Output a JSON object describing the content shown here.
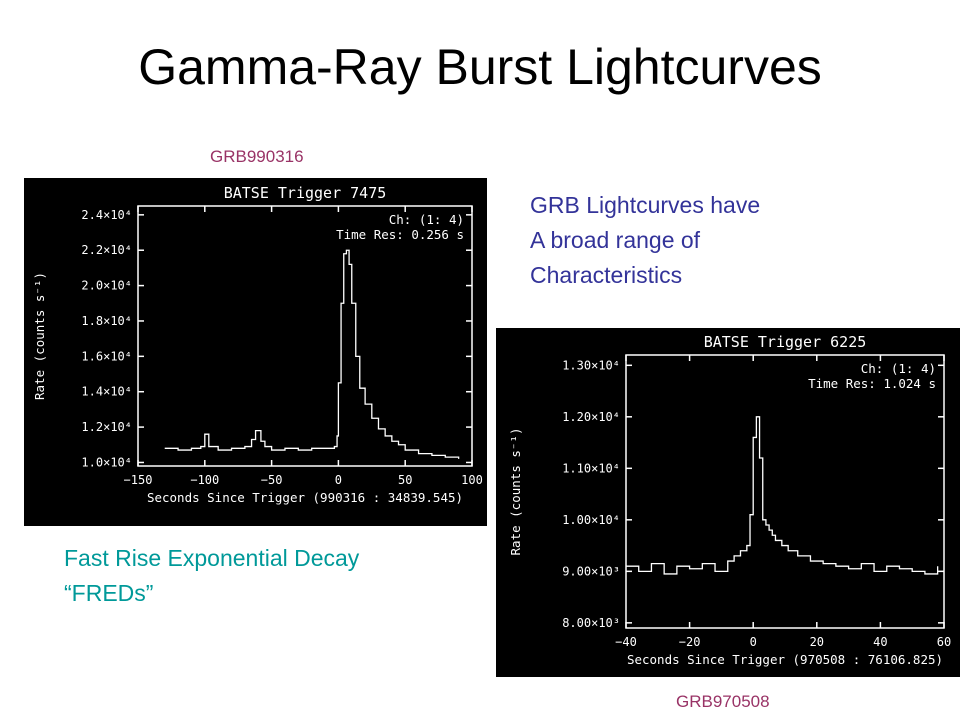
{
  "slide": {
    "title": "Gamma-Ray Burst Lightcurves",
    "label_top": "GRB990316",
    "label_bottom": "GRB970508",
    "description": [
      "GRB Lightcurves have",
      "A broad range of",
      "Characteristics"
    ],
    "fred": [
      "Fast Rise Exponential Decay",
      "“FREDs”"
    ]
  },
  "colors": {
    "label": "#993366",
    "description": "#333399",
    "fred": "#009999",
    "panel_bg": "#000000",
    "trace": "#ffffff"
  },
  "chart_data": [
    {
      "type": "line",
      "title": "BATSE Trigger 7475",
      "info": [
        "Ch: (1: 4)",
        "Time Res: 0.256 s"
      ],
      "xlabel": "Seconds Since Trigger (990316 : 34839.545)",
      "ylabel": "Rate (counts s⁻¹)",
      "xlim": [
        -150,
        100
      ],
      "ylim": [
        9800,
        24500
      ],
      "xticks": [
        -150,
        -100,
        -50,
        0,
        50,
        100
      ],
      "xtick_labels": [
        "−150",
        "−100",
        "−50",
        "0",
        "50",
        "100"
      ],
      "yticks": [
        10000,
        12000,
        14000,
        16000,
        18000,
        20000,
        22000,
        24000
      ],
      "ytick_labels": [
        "1.0×10⁴",
        "1.2×10⁴",
        "1.4×10⁴",
        "1.6×10⁴",
        "1.8×10⁴",
        "2.0×10⁴",
        "2.2×10⁴",
        "2.4×10⁴"
      ],
      "grid": false,
      "series": [
        {
          "x": [
            -130,
            -120,
            -110,
            -103,
            -100,
            -97,
            -90,
            -80,
            -70,
            -65,
            -62,
            -58,
            -55,
            -50,
            -40,
            -30,
            -20,
            -10,
            -3,
            -1,
            0,
            2,
            4,
            6,
            8,
            10,
            13,
            16,
            20,
            25,
            30,
            35,
            40,
            45,
            50,
            60,
            70,
            80,
            90
          ],
          "y": [
            10800,
            10700,
            10800,
            10900,
            11600,
            10900,
            10700,
            10800,
            10900,
            11300,
            11800,
            11200,
            10900,
            10700,
            10800,
            10700,
            10800,
            10800,
            10900,
            11500,
            14500,
            19000,
            21800,
            22000,
            21200,
            19000,
            16000,
            14200,
            13300,
            12500,
            11900,
            11500,
            11200,
            11000,
            10700,
            10500,
            10400,
            10300,
            10200
          ]
        }
      ]
    },
    {
      "type": "line",
      "title": "BATSE Trigger 6225",
      "info": [
        "Ch: (1: 4)",
        "Time Res: 1.024 s"
      ],
      "xlabel": "Seconds Since Trigger (970508 : 76106.825)",
      "ylabel": "Rate (counts s⁻¹)",
      "xlim": [
        -40,
        60
      ],
      "ylim": [
        7900,
        13200
      ],
      "xticks": [
        -40,
        -20,
        0,
        20,
        40,
        60
      ],
      "xtick_labels": [
        "−40",
        "−20",
        "0",
        "20",
        "40",
        "60"
      ],
      "yticks": [
        8000,
        9000,
        10000,
        11000,
        12000,
        13000
      ],
      "ytick_labels": [
        "8.00×10³",
        "9.00×10³",
        "1.00×10⁴",
        "1.10×10⁴",
        "1.20×10⁴",
        "1.30×10⁴"
      ],
      "grid": false,
      "series": [
        {
          "x": [
            -40,
            -36,
            -32,
            -28,
            -24,
            -20,
            -16,
            -12,
            -8,
            -6,
            -4,
            -2,
            -1,
            0,
            1,
            2,
            3,
            4,
            5,
            6,
            7,
            9,
            11,
            14,
            18,
            22,
            26,
            30,
            34,
            38,
            42,
            46,
            50,
            54,
            58
          ],
          "y": [
            9100,
            9000,
            9150,
            8950,
            9100,
            9050,
            9150,
            9000,
            9200,
            9300,
            9400,
            9500,
            10100,
            11600,
            12000,
            11200,
            10000,
            9900,
            9800,
            9700,
            9600,
            9500,
            9400,
            9300,
            9200,
            9150,
            9100,
            9050,
            9150,
            9000,
            9100,
            9050,
            9000,
            8950,
            9100
          ]
        }
      ]
    }
  ]
}
